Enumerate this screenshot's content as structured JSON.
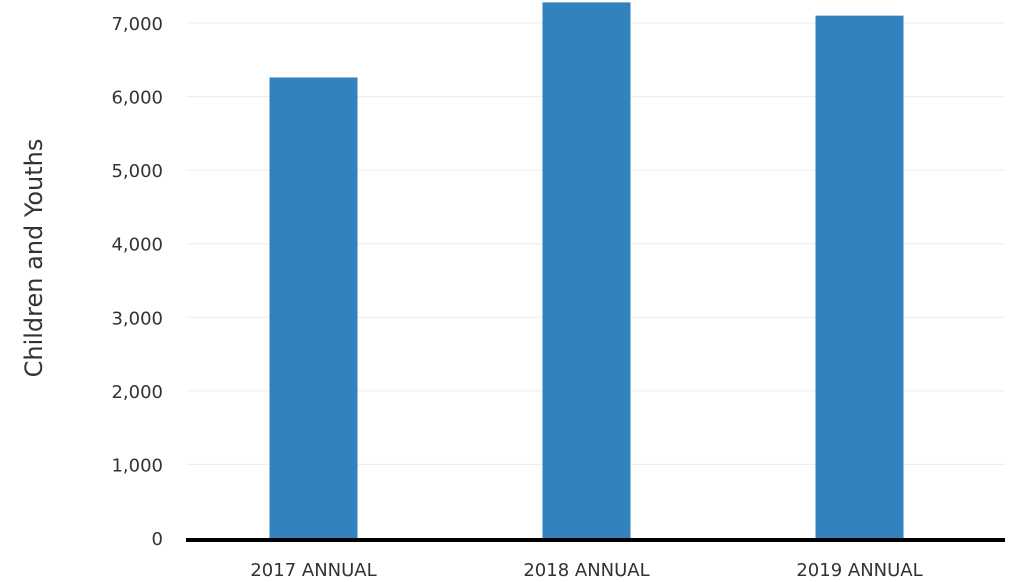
{
  "chart_data": {
    "type": "bar",
    "categories": [
      "2017 ANNUAL",
      "2018 ANNUAL",
      "2019 ANNUAL"
    ],
    "series": [
      {
        "values": [
          6260,
          7280,
          7100
        ]
      }
    ],
    "ylabel": "Children and Youths",
    "xlabel": "",
    "title": "",
    "ylim": [
      0,
      7000
    ],
    "yticks": [
      "0",
      "1,000",
      "2,000",
      "3,000",
      "4,000",
      "5,000",
      "6,000",
      "7,000"
    ],
    "ytick_values": [
      0,
      1000,
      2000,
      3000,
      4000,
      5000,
      6000,
      7000
    ],
    "grid": true,
    "legend": "none",
    "colors": {
      "bar": "#3182bd"
    }
  }
}
